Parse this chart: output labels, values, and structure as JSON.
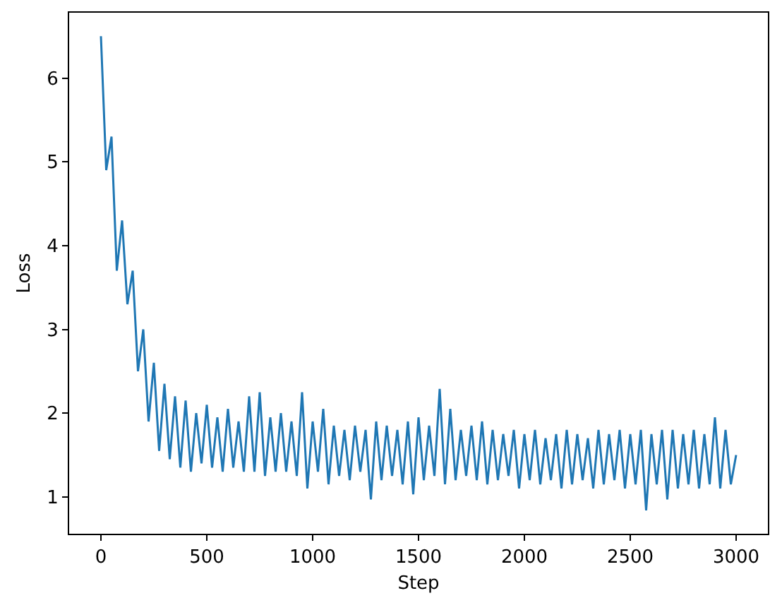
{
  "chart_data": {
    "type": "line",
    "xlabel": "Step",
    "ylabel": "Loss",
    "x": [
      0,
      25,
      50,
      75,
      100,
      125,
      150,
      175,
      200,
      225,
      250,
      275,
      300,
      325,
      350,
      375,
      400,
      425,
      450,
      475,
      500,
      525,
      550,
      575,
      600,
      625,
      650,
      675,
      700,
      725,
      750,
      775,
      800,
      825,
      850,
      875,
      900,
      925,
      950,
      975,
      1000,
      1025,
      1050,
      1075,
      1100,
      1125,
      1150,
      1175,
      1200,
      1225,
      1250,
      1275,
      1300,
      1325,
      1350,
      1375,
      1400,
      1425,
      1450,
      1475,
      1500,
      1525,
      1550,
      1575,
      1600,
      1625,
      1650,
      1675,
      1700,
      1725,
      1750,
      1775,
      1800,
      1825,
      1850,
      1875,
      1900,
      1925,
      1950,
      1975,
      2000,
      2025,
      2050,
      2075,
      2100,
      2125,
      2150,
      2175,
      2200,
      2225,
      2250,
      2275,
      2300,
      2325,
      2350,
      2375,
      2400,
      2425,
      2450,
      2475,
      2500,
      2525,
      2550,
      2575,
      2600,
      2625,
      2650,
      2675,
      2700,
      2725,
      2750,
      2775,
      2800,
      2825,
      2850,
      2875,
      2900,
      2925,
      2950,
      2975,
      3000
    ],
    "series": [
      {
        "color": "#1f77b4",
        "values": [
          6.5,
          4.9,
          5.3,
          3.7,
          4.3,
          3.3,
          3.7,
          2.5,
          3.0,
          1.9,
          2.6,
          1.55,
          2.35,
          1.45,
          2.2,
          1.35,
          2.15,
          1.3,
          2.0,
          1.4,
          2.1,
          1.35,
          1.95,
          1.3,
          2.05,
          1.35,
          1.9,
          1.3,
          2.2,
          1.3,
          2.25,
          1.25,
          1.95,
          1.3,
          2.0,
          1.3,
          1.9,
          1.25,
          2.25,
          1.1,
          1.9,
          1.3,
          2.05,
          1.15,
          1.85,
          1.25,
          1.8,
          1.2,
          1.85,
          1.3,
          1.8,
          0.97,
          1.9,
          1.2,
          1.85,
          1.25,
          1.8,
          1.15,
          1.9,
          1.03,
          1.95,
          1.2,
          1.85,
          1.25,
          2.29,
          1.15,
          2.05,
          1.2,
          1.8,
          1.25,
          1.85,
          1.2,
          1.9,
          1.15,
          1.8,
          1.2,
          1.75,
          1.25,
          1.8,
          1.1,
          1.75,
          1.2,
          1.8,
          1.15,
          1.7,
          1.2,
          1.75,
          1.1,
          1.8,
          1.15,
          1.75,
          1.2,
          1.7,
          1.1,
          1.8,
          1.15,
          1.75,
          1.2,
          1.8,
          1.1,
          1.75,
          1.15,
          1.8,
          0.84,
          1.75,
          1.15,
          1.8,
          0.97,
          1.8,
          1.1,
          1.75,
          1.15,
          1.8,
          1.1,
          1.75,
          1.15,
          1.95,
          1.1,
          1.8,
          1.15,
          1.5
        ]
      }
    ],
    "xlim": [
      -150,
      3150
    ],
    "ylim": [
      0.56,
      6.78
    ],
    "xticks": [
      0,
      500,
      1000,
      1500,
      2000,
      2500,
      3000
    ],
    "yticks": [
      1,
      2,
      3,
      4,
      5,
      6
    ],
    "marker": "none",
    "line_style": "solid"
  }
}
